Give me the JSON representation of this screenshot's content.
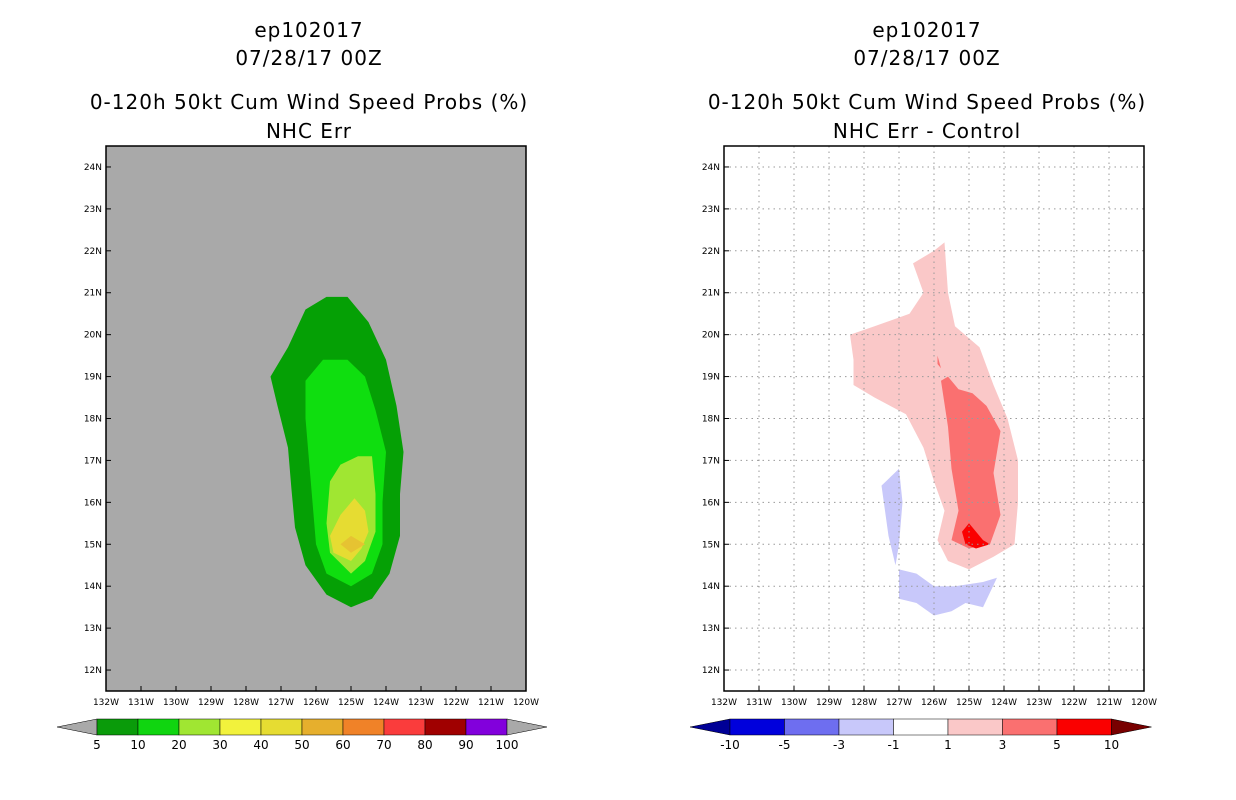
{
  "panels": [
    {
      "id": "left",
      "title_line1": "ep102017",
      "title_line2": "07/28/17 00Z",
      "title_line3": "0-120h 50kt Cum Wind Speed Probs (%)",
      "title_line4": "NHC Err"
    },
    {
      "id": "right",
      "title_line1": "ep102017",
      "title_line2": "07/28/17 00Z",
      "title_line3": "0-120h 50kt Cum Wind Speed Probs (%)",
      "title_line4": "NHC Err - Control"
    }
  ],
  "chart_data": [
    {
      "type": "heatmap",
      "title": "0-120h 50kt Cum Wind Speed Probs (%)",
      "subtitle": "NHC Err",
      "xlabel": "",
      "ylabel": "",
      "xlim": [
        -132,
        -120
      ],
      "ylim": [
        11.5,
        24.5
      ],
      "x_ticks": [
        "132W",
        "131W",
        "130W",
        "129W",
        "128W",
        "127W",
        "126W",
        "125W",
        "124W",
        "123W",
        "122W",
        "121W",
        "120W"
      ],
      "y_ticks": [
        "12N",
        "13N",
        "14N",
        "15N",
        "16N",
        "17N",
        "18N",
        "19N",
        "20N",
        "21N",
        "22N",
        "23N",
        "24N"
      ],
      "grid": false,
      "background_color": "#a9a9a9",
      "contours": [
        {
          "level": 5,
          "color": "#05a005",
          "polygon": [
            [
              -125.0,
              13.5
            ],
            [
              -124.4,
              13.7
            ],
            [
              -123.9,
              14.3
            ],
            [
              -123.6,
              15.2
            ],
            [
              -123.6,
              16.2
            ],
            [
              -123.5,
              17.2
            ],
            [
              -123.7,
              18.3
            ],
            [
              -124.0,
              19.4
            ],
            [
              -124.5,
              20.3
            ],
            [
              -125.1,
              20.9
            ],
            [
              -125.7,
              20.9
            ],
            [
              -126.3,
              20.6
            ],
            [
              -126.8,
              19.7
            ],
            [
              -127.3,
              19.0
            ],
            [
              -127.1,
              18.3
            ],
            [
              -126.8,
              17.3
            ],
            [
              -126.7,
              16.3
            ],
            [
              -126.6,
              15.4
            ],
            [
              -126.3,
              14.5
            ],
            [
              -125.7,
              13.8
            ]
          ]
        },
        {
          "level": 10,
          "color": "#0fde0f",
          "polygon": [
            [
              -125.0,
              14.0
            ],
            [
              -124.4,
              14.3
            ],
            [
              -124.1,
              15.0
            ],
            [
              -124.1,
              16.0
            ],
            [
              -124.0,
              17.2
            ],
            [
              -124.3,
              18.2
            ],
            [
              -124.6,
              19.0
            ],
            [
              -125.1,
              19.4
            ],
            [
              -125.8,
              19.4
            ],
            [
              -126.3,
              18.9
            ],
            [
              -126.3,
              18.0
            ],
            [
              -126.2,
              17.0
            ],
            [
              -126.1,
              16.0
            ],
            [
              -126.0,
              15.0
            ],
            [
              -125.7,
              14.3
            ]
          ]
        },
        {
          "level": 20,
          "color": "#a0e632",
          "polygon": [
            [
              -125.0,
              14.3
            ],
            [
              -124.6,
              14.6
            ],
            [
              -124.3,
              15.3
            ],
            [
              -124.3,
              16.2
            ],
            [
              -124.4,
              17.1
            ],
            [
              -124.8,
              17.1
            ],
            [
              -125.3,
              16.9
            ],
            [
              -125.6,
              16.5
            ],
            [
              -125.7,
              15.5
            ],
            [
              -125.6,
              14.8
            ]
          ]
        },
        {
          "level": 30,
          "color": "#e6dc32",
          "polygon": [
            [
              -125.0,
              14.6
            ],
            [
              -124.7,
              14.9
            ],
            [
              -124.5,
              15.3
            ],
            [
              -124.6,
              15.8
            ],
            [
              -124.9,
              16.1
            ],
            [
              -125.3,
              15.7
            ],
            [
              -125.6,
              15.2
            ],
            [
              -125.5,
              14.8
            ]
          ]
        },
        {
          "level": 40,
          "color": "#e6c332",
          "polygon": [
            [
              -125.0,
              14.8
            ],
            [
              -124.6,
              15.0
            ],
            [
              -125.0,
              15.2
            ],
            [
              -125.3,
              15.0
            ]
          ]
        }
      ],
      "colorbar": {
        "labels": [
          "5",
          "10",
          "20",
          "30",
          "40",
          "50",
          "60",
          "70",
          "80",
          "90",
          "100"
        ],
        "colors": [
          "#0a9b0a",
          "#10d510",
          "#a0e632",
          "#f2f23c",
          "#e6dc32",
          "#e6af2d",
          "#f08228",
          "#fa3c3c",
          "#a00000",
          "#8200dc"
        ],
        "under_color": "#a9a9a9",
        "over_color": "#a9a9a9"
      }
    },
    {
      "type": "heatmap",
      "title": "0-120h 50kt Cum Wind Speed Probs (%)",
      "subtitle": "NHC Err - Control",
      "xlabel": "",
      "ylabel": "",
      "xlim": [
        -132,
        -120
      ],
      "ylim": [
        11.5,
        24.5
      ],
      "x_ticks": [
        "132W",
        "131W",
        "130W",
        "129W",
        "128W",
        "127W",
        "126W",
        "125W",
        "124W",
        "123W",
        "122W",
        "121W",
        "120W"
      ],
      "y_ticks": [
        "12N",
        "13N",
        "14N",
        "15N",
        "16N",
        "17N",
        "18N",
        "19N",
        "20N",
        "21N",
        "22N",
        "23N",
        "24N"
      ],
      "grid": true,
      "background_color": "#ffffff",
      "contours": [
        {
          "level": 1,
          "color": "#fac8c8",
          "polygon": [
            [
              -125.0,
              14.4
            ],
            [
              -124.3,
              14.7
            ],
            [
              -123.7,
              15.0
            ],
            [
              -123.6,
              16.0
            ],
            [
              -123.6,
              17.0
            ],
            [
              -123.9,
              18.0
            ],
            [
              -124.3,
              18.8
            ],
            [
              -124.7,
              19.7
            ],
            [
              -125.4,
              20.2
            ],
            [
              -125.6,
              21.0
            ],
            [
              -125.7,
              22.2
            ],
            [
              -126.0,
              22.0
            ],
            [
              -126.6,
              21.7
            ],
            [
              -126.3,
              21.0
            ],
            [
              -126.7,
              20.5
            ],
            [
              -127.7,
              20.2
            ],
            [
              -128.4,
              20.0
            ],
            [
              -128.3,
              19.4
            ],
            [
              -128.3,
              18.8
            ],
            [
              -127.7,
              18.5
            ],
            [
              -126.8,
              18.1
            ],
            [
              -126.3,
              17.3
            ],
            [
              -126.0,
              16.5
            ],
            [
              -125.7,
              15.8
            ],
            [
              -125.9,
              15.1
            ],
            [
              -125.6,
              14.6
            ]
          ]
        },
        {
          "level": 3,
          "color": "#fa7070",
          "polygon": [
            [
              -125.0,
              14.9
            ],
            [
              -124.4,
              15.0
            ],
            [
              -124.1,
              15.7
            ],
            [
              -124.3,
              16.7
            ],
            [
              -124.1,
              17.7
            ],
            [
              -124.5,
              18.3
            ],
            [
              -124.9,
              18.6
            ],
            [
              -125.3,
              18.7
            ],
            [
              -125.6,
              19.0
            ],
            [
              -125.8,
              18.9
            ],
            [
              -125.6,
              17.8
            ],
            [
              -125.5,
              16.8
            ],
            [
              -125.3,
              15.8
            ],
            [
              -125.5,
              15.1
            ]
          ]
        },
        {
          "level": 5,
          "color": "#fa0000",
          "polygon": [
            [
              -125.0,
              15.5
            ],
            [
              -124.6,
              15.1
            ],
            [
              -124.4,
              15.0
            ],
            [
              -124.8,
              14.9
            ],
            [
              -125.1,
              15.0
            ],
            [
              -125.2,
              15.3
            ]
          ]
        },
        {
          "level": 3,
          "color": "#fa7070",
          "polygon": [
            [
              -125.9,
              19.5
            ],
            [
              -125.8,
              19.2
            ],
            [
              -125.9,
              19.3
            ]
          ]
        },
        {
          "level": -1,
          "color": "#c8c8fa",
          "polygon": [
            [
              -127.5,
              16.4
            ],
            [
              -127.0,
              16.8
            ],
            [
              -126.9,
              16.0
            ],
            [
              -127.0,
              15.0
            ],
            [
              -127.1,
              14.5
            ],
            [
              -127.3,
              15.2
            ],
            [
              -127.4,
              15.8
            ]
          ]
        },
        {
          "level": -1,
          "color": "#c8c8fa",
          "polygon": [
            [
              -127.0,
              14.4
            ],
            [
              -126.5,
              14.3
            ],
            [
              -126.0,
              14.0
            ],
            [
              -125.4,
              14.0
            ],
            [
              -124.6,
              14.1
            ],
            [
              -124.2,
              14.2
            ],
            [
              -124.6,
              13.5
            ],
            [
              -125.1,
              13.6
            ],
            [
              -125.5,
              13.4
            ],
            [
              -126.0,
              13.3
            ],
            [
              -126.5,
              13.6
            ],
            [
              -127.0,
              13.7
            ]
          ]
        }
      ],
      "colorbar": {
        "labels": [
          "-10",
          "-5",
          "-3",
          "-1",
          "1",
          "3",
          "5",
          "10"
        ],
        "colors": [
          "#0000dc",
          "#6e6ef0",
          "#c8c8fa",
          "#ffffff",
          "#fac8c8",
          "#fa7070",
          "#fa0000"
        ],
        "under_color": "#000096",
        "over_color": "#780000"
      }
    }
  ]
}
